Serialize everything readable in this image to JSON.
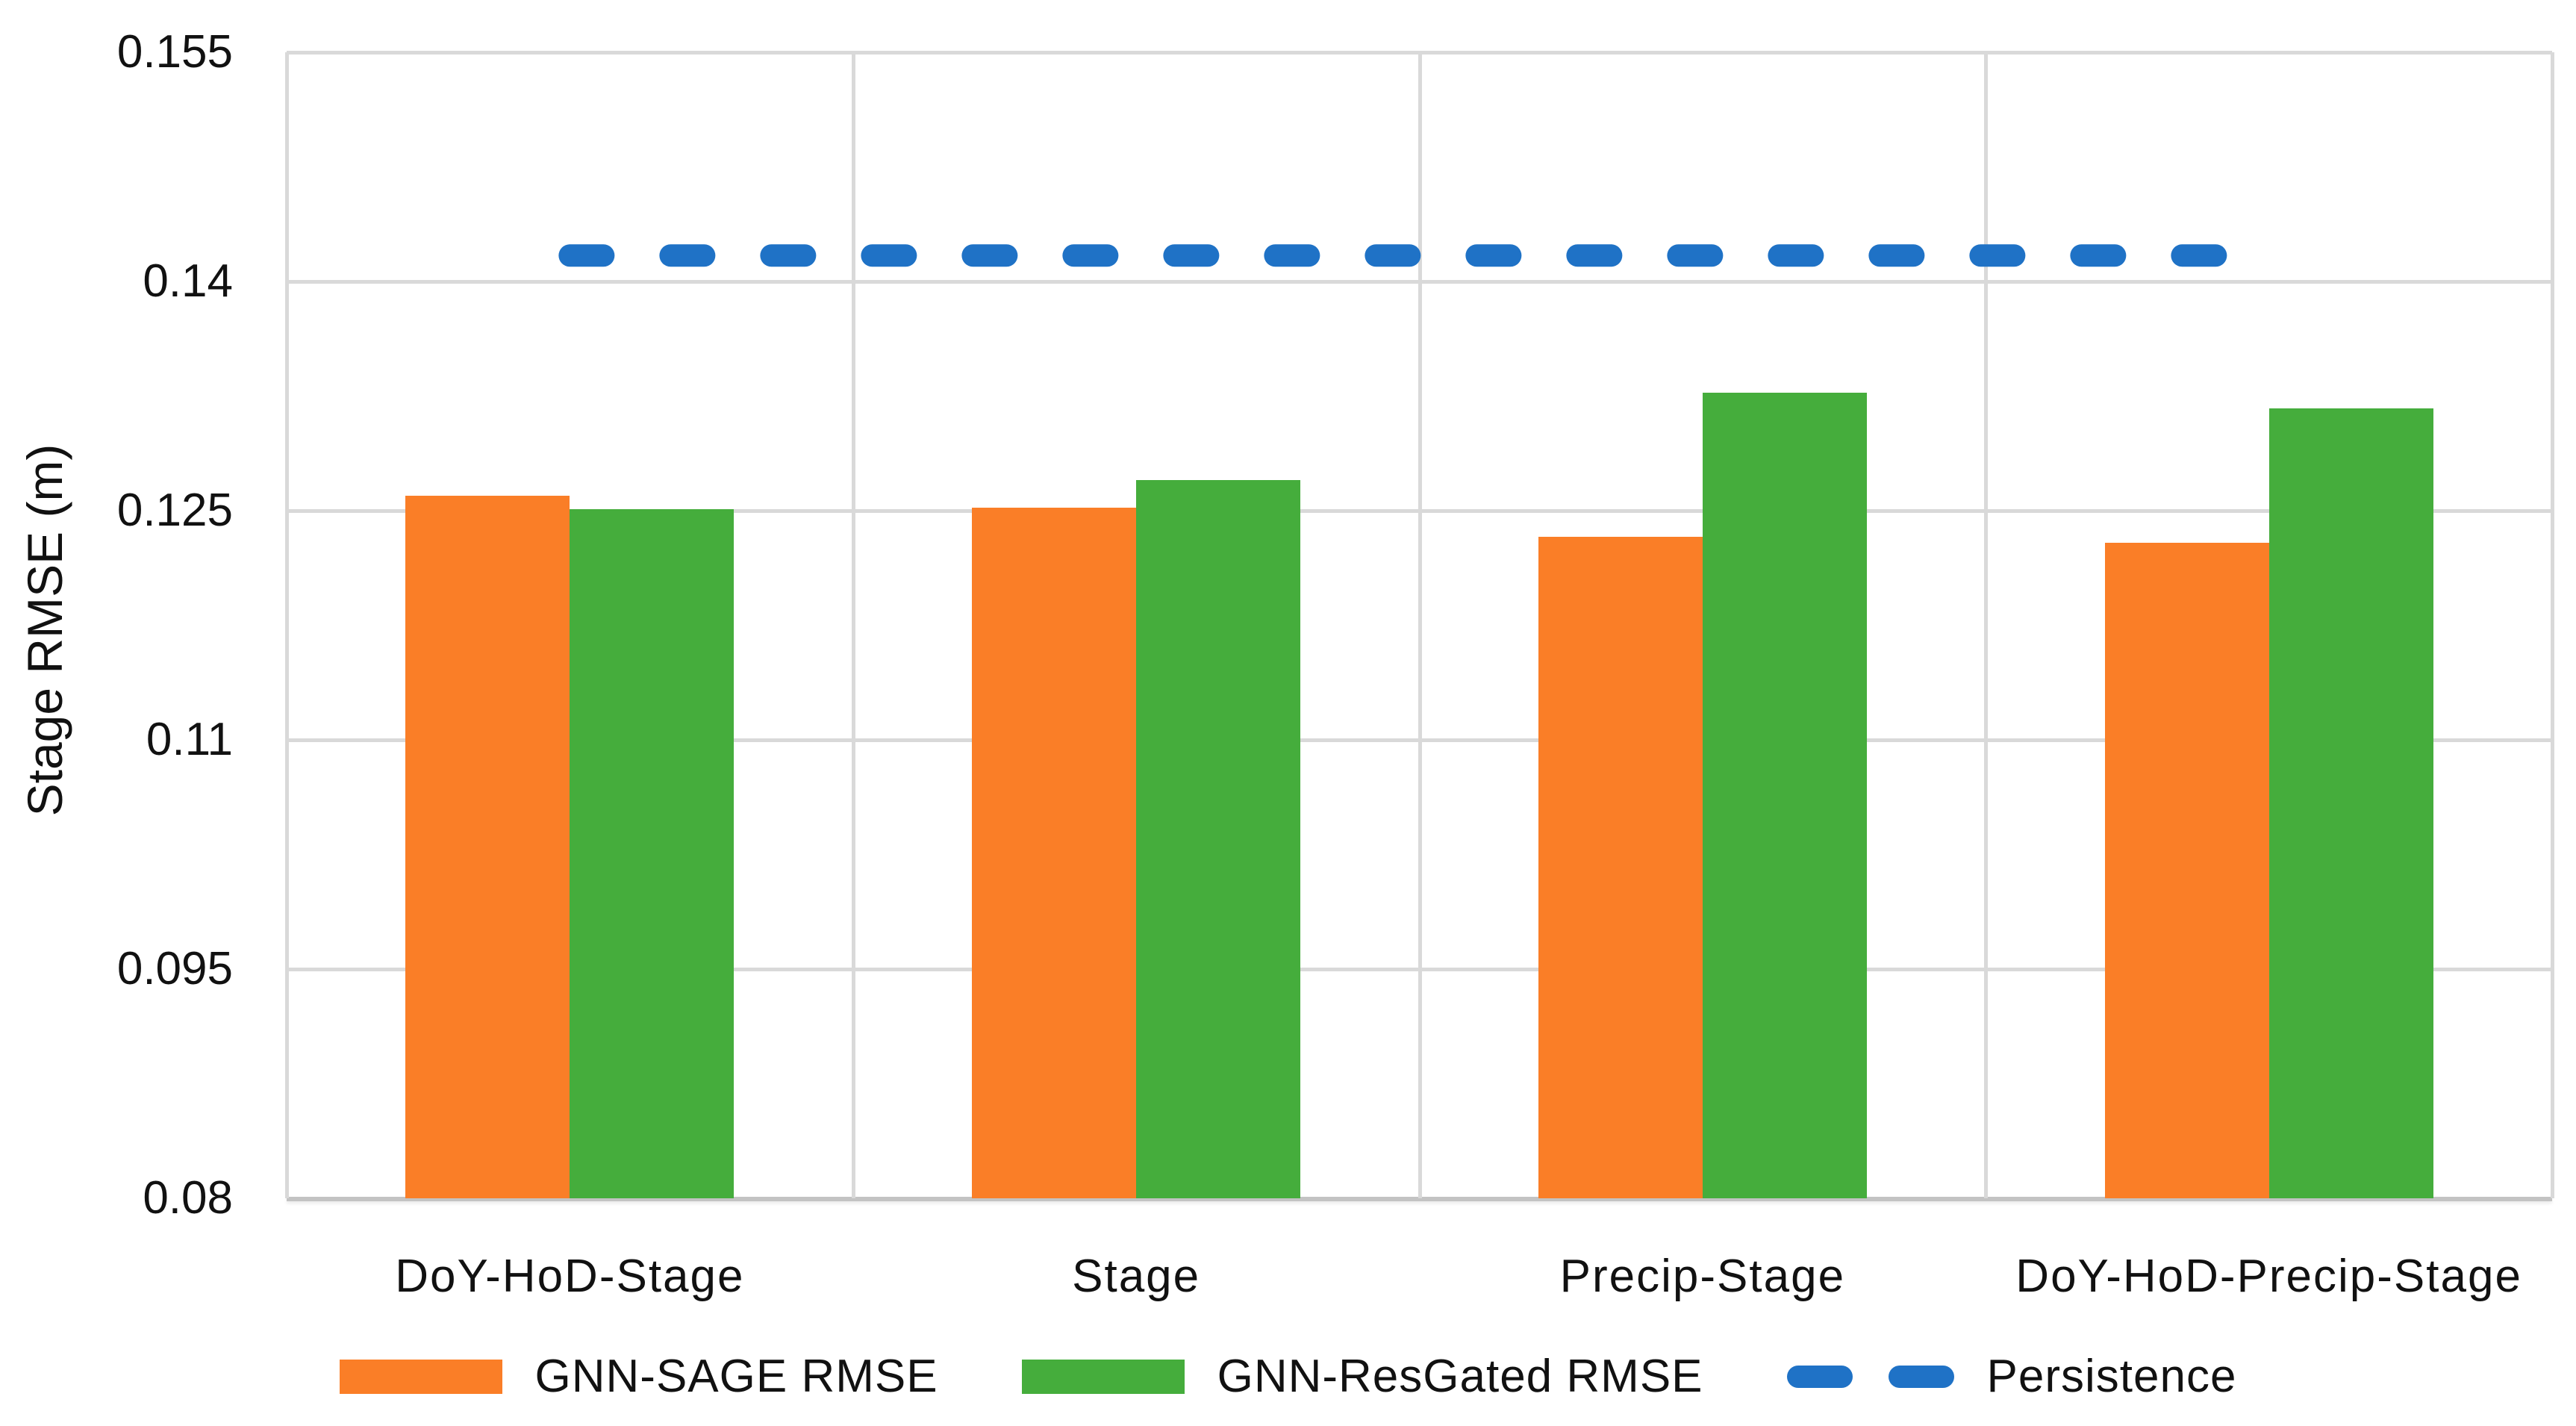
{
  "chart_data": {
    "type": "bar",
    "title": "",
    "xlabel": "",
    "ylabel": "Stage RMSE (m)",
    "categories": [
      "DoY-HoD-Stage",
      "Stage",
      "Precip-Stage",
      "DoY-HoD-Precip-Stage"
    ],
    "series": [
      {
        "name": "GNN-SAGE RMSE",
        "color": "#FA7E27",
        "values": [
          0.126,
          0.1252,
          0.1233,
          0.1229
        ]
      },
      {
        "name": "GNN-ResGated RMSE",
        "color": "#45AD3C",
        "values": [
          0.1251,
          0.127,
          0.1327,
          0.1317
        ]
      }
    ],
    "reference_line": {
      "name": "Persistence",
      "value": 0.1417,
      "color": "#1F72C6",
      "style": "dashed-rounded"
    },
    "ylim": [
      0.08,
      0.155
    ],
    "yticks": [
      0.08,
      0.095,
      0.11,
      0.125,
      0.14,
      0.155
    ],
    "ytick_labels": [
      "0.08",
      "0.095",
      "0.11",
      "0.125",
      "0.14",
      "0.155"
    ],
    "grid": true,
    "legend_position": "bottom",
    "colors": {
      "grid": "#D9D9D9",
      "axis": "#C3C3C3",
      "text": "#111111",
      "background": "#FFFFFF"
    }
  },
  "legend": {
    "items": [
      {
        "label": "GNN-SAGE RMSE",
        "swatch": "orange-rect"
      },
      {
        "label": "GNN-ResGated RMSE",
        "swatch": "green-rect"
      },
      {
        "label": "Persistence",
        "swatch": "blue-dashes"
      }
    ]
  }
}
